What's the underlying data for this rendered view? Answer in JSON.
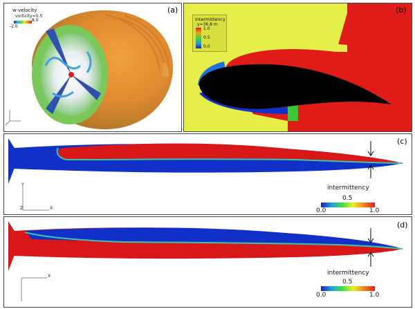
{
  "panels": {
    "a": {
      "label": "(a)",
      "legend_title": "w-velocity",
      "legend_subtitle": "vorticity=0.5",
      "legend_min": "-2.0",
      "legend_max": "8.0"
    },
    "b": {
      "label": "(b)",
      "legend_title": "intermittency",
      "legend_subtitle": "y=36.8 m",
      "ticks": [
        "1.0",
        "0.5",
        "0.0"
      ]
    },
    "c": {
      "label": "(c)",
      "legend_title": "intermittency",
      "tick_mid": "0.5",
      "tick_min": "0.0",
      "tick_max": "1.0",
      "axis_y": "Y",
      "axis_x": "X",
      "axis_z": "Z"
    },
    "d": {
      "label": "(d)",
      "legend_title": "intermittency",
      "tick_mid": "0.5",
      "tick_min": "0.0",
      "tick_max": "1.0",
      "axis_x": "X"
    }
  },
  "colors": {
    "laminar": "#1030c8",
    "turbulent": "#d81818",
    "transition_mid": "#38c838",
    "ambient": "#e8f048",
    "airfoil": "#000000"
  }
}
